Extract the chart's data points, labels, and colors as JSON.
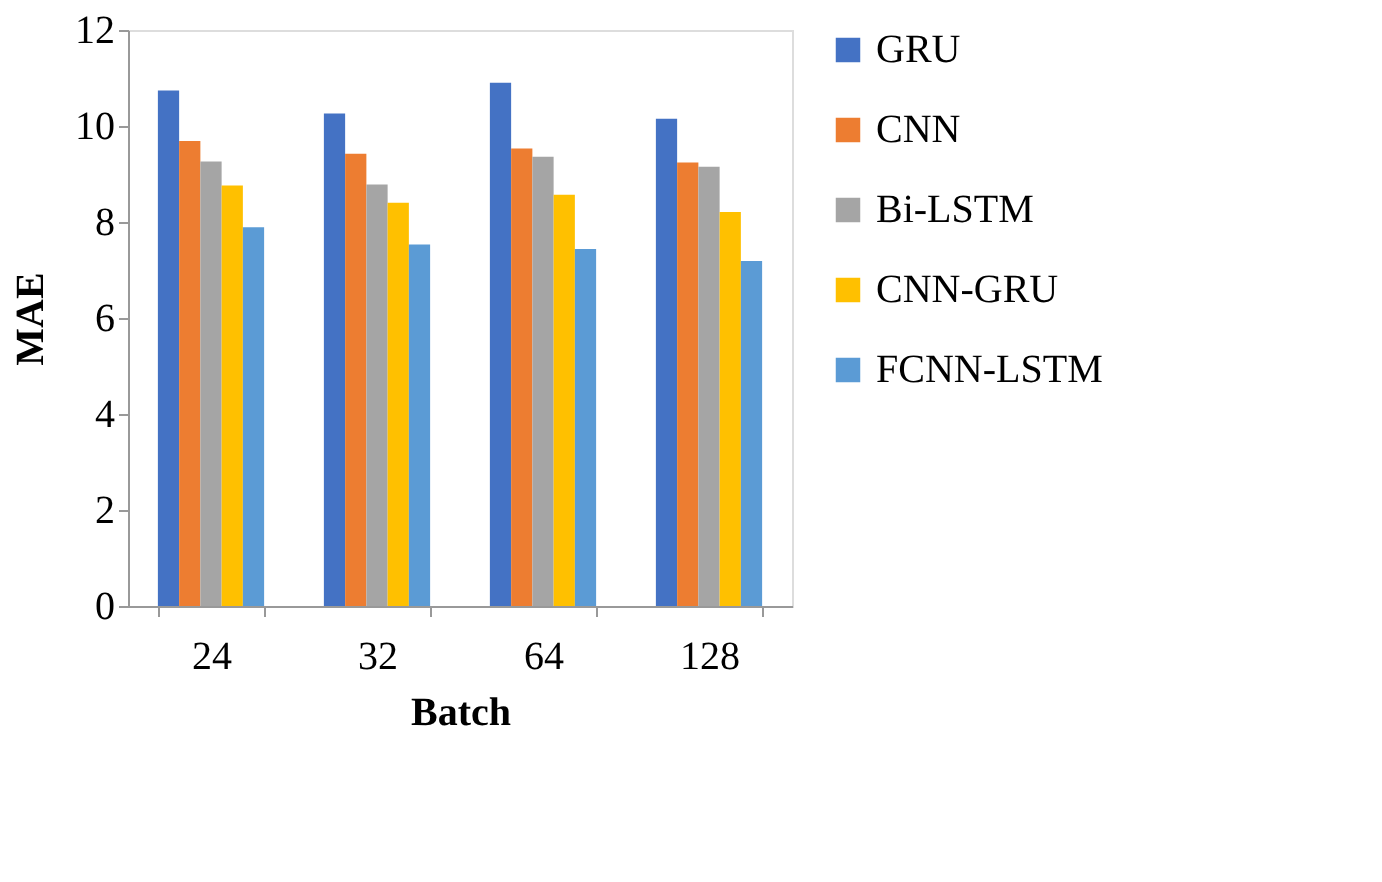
{
  "chart_data": {
    "type": "bar",
    "xlabel": "Batch",
    "ylabel": "MAE",
    "categories": [
      "24",
      "32",
      "64",
      "128"
    ],
    "series": [
      {
        "name": "GRU",
        "color": "#4472c4",
        "values": [
          10.74,
          10.26,
          10.9,
          10.15
        ]
      },
      {
        "name": "CNN",
        "color": "#ed7d31",
        "values": [
          9.69,
          9.42,
          9.53,
          9.24
        ]
      },
      {
        "name": "Bi-LSTM",
        "color": "#a5a5a5",
        "values": [
          9.26,
          8.78,
          9.36,
          9.15
        ]
      },
      {
        "name": "CNN-GRU",
        "color": "#ffc000",
        "values": [
          8.76,
          8.4,
          8.57,
          8.21
        ]
      },
      {
        "name": "FCNN-LSTM",
        "color": "#5b9bd5",
        "values": [
          7.89,
          7.53,
          7.44,
          7.19
        ]
      }
    ],
    "ylim": [
      0,
      12
    ],
    "yticks": [
      0,
      2,
      4,
      6,
      8,
      10,
      12
    ],
    "grid": false,
    "legend": "right"
  }
}
